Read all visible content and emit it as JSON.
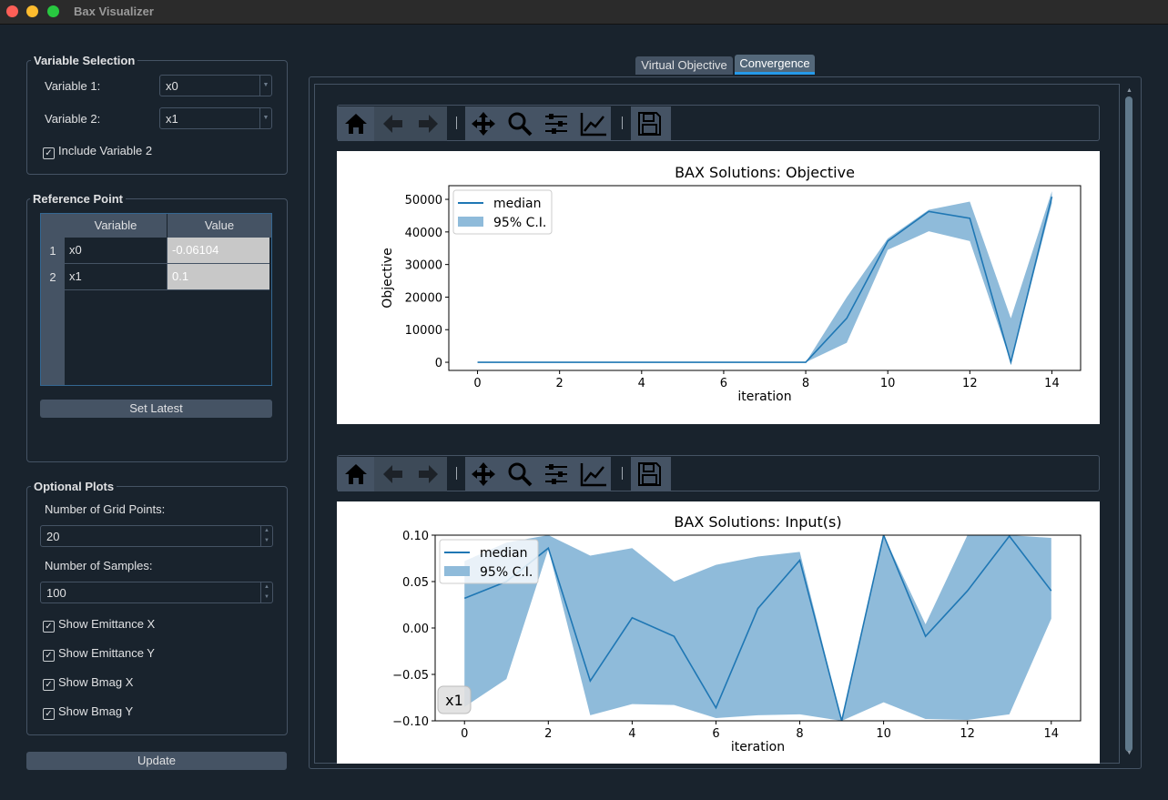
{
  "window": {
    "title": "Bax Visualizer"
  },
  "variable_selection": {
    "title": "Variable Selection",
    "var1_label": "Variable 1:",
    "var1_value": "x0",
    "var2_label": "Variable 2:",
    "var2_value": "x1",
    "include_var2_label": "Include Variable 2",
    "include_var2_checked": true
  },
  "reference_point": {
    "title": "Reference Point",
    "headers": [
      "Variable",
      "Value"
    ],
    "rows": [
      {
        "index": "1",
        "variable": "x0",
        "value": "-0.06104"
      },
      {
        "index": "2",
        "variable": "x1",
        "value": "0.1"
      }
    ],
    "set_latest_label": "Set Latest"
  },
  "optional_plots": {
    "title": "Optional Plots",
    "grid_points_label": "Number of Grid Points:",
    "grid_points_value": "20",
    "samples_label": "Number of Samples:",
    "samples_value": "100",
    "checks": [
      {
        "label": "Show Emittance X",
        "checked": true
      },
      {
        "label": "Show Emittance Y",
        "checked": true
      },
      {
        "label": "Show Bmag X",
        "checked": true
      },
      {
        "label": "Show Bmag Y",
        "checked": true
      }
    ]
  },
  "update_label": "Update",
  "tabs": [
    {
      "label": "Virtual Objective",
      "active": false
    },
    {
      "label": "Convergence",
      "active": true
    }
  ],
  "toolbar_icons": [
    "home-icon",
    "back-arrow-icon",
    "forward-arrow-icon",
    "pan-icon",
    "zoom-icon",
    "configure-subplots-icon",
    "edit-axis-icon",
    "save-icon"
  ],
  "colors": {
    "line": "#1f77b4",
    "band": "#8fbbda",
    "accent": "#346792",
    "panel": "#455364"
  },
  "chart_data": [
    {
      "type": "line",
      "title": "BAX Solutions: Objective",
      "xlabel": "iteration",
      "ylabel": "Objective",
      "xlim": [
        -0.7,
        14.7
      ],
      "ylim": [
        -2500,
        54200
      ],
      "xticks": [
        0,
        2,
        4,
        6,
        8,
        10,
        12,
        14
      ],
      "xtick_labels": [
        "0",
        "2",
        "4",
        "6",
        "8",
        "10",
        "12",
        "14"
      ],
      "yticks": [
        0,
        10000,
        20000,
        30000,
        40000,
        50000
      ],
      "ytick_labels": [
        "0",
        "10000",
        "20000",
        "30000",
        "40000",
        "50000"
      ],
      "grid": false,
      "legend": {
        "position": "top-left",
        "entries": [
          "median",
          "95% C.I."
        ]
      },
      "x": [
        0,
        1,
        2,
        3,
        4,
        5,
        6,
        7,
        8,
        9,
        10,
        11,
        12,
        13,
        14
      ],
      "median": [
        0,
        0,
        0,
        0,
        0,
        0,
        0,
        0,
        0,
        13500,
        37200,
        46300,
        44200,
        0,
        50800
      ],
      "ci_low": [
        0,
        0,
        0,
        0,
        0,
        0,
        0,
        0,
        0,
        6000,
        34500,
        40200,
        37200,
        0,
        48800
      ],
      "ci_high": [
        0,
        0,
        0,
        0,
        0,
        0,
        0,
        0,
        0,
        20000,
        38000,
        46800,
        49300,
        13500,
        52500
      ]
    },
    {
      "type": "line",
      "title": "BAX Solutions: Input(s)",
      "xlabel": "iteration",
      "ylabel": "",
      "xlim": [
        -0.7,
        14.7
      ],
      "ylim": [
        -0.1,
        0.1
      ],
      "xticks": [
        0,
        2,
        4,
        6,
        8,
        10,
        12,
        14
      ],
      "xtick_labels": [
        "0",
        "2",
        "4",
        "6",
        "8",
        "10",
        "12",
        "14"
      ],
      "yticks": [
        -0.1,
        -0.05,
        0.0,
        0.05,
        0.1
      ],
      "ytick_labels": [
        "−0.10",
        "−0.05",
        "0.00",
        "0.05",
        "0.10"
      ],
      "grid": false,
      "legend": {
        "position": "top-left",
        "entries": [
          "median",
          "95% C.I."
        ]
      },
      "annotation": "x1",
      "x": [
        0,
        1,
        2,
        3,
        4,
        5,
        6,
        7,
        8,
        9,
        10,
        11,
        12,
        13,
        14
      ],
      "median": [
        0.032,
        0.05,
        0.086,
        -0.057,
        0.011,
        -0.009,
        -0.086,
        0.021,
        0.073,
        -0.1,
        0.1,
        -0.009,
        0.04,
        0.099,
        0.04
      ],
      "ci_low": [
        -0.085,
        -0.055,
        0.085,
        -0.094,
        -0.082,
        -0.083,
        -0.097,
        -0.094,
        -0.093,
        -0.1,
        -0.08,
        -0.098,
        -0.099,
        -0.093,
        0.01
      ],
      "ci_high": [
        0.072,
        0.092,
        0.1,
        0.078,
        0.086,
        0.05,
        0.068,
        0.077,
        0.082,
        -0.1,
        0.1,
        0.004,
        0.1,
        0.1,
        0.097
      ]
    }
  ]
}
